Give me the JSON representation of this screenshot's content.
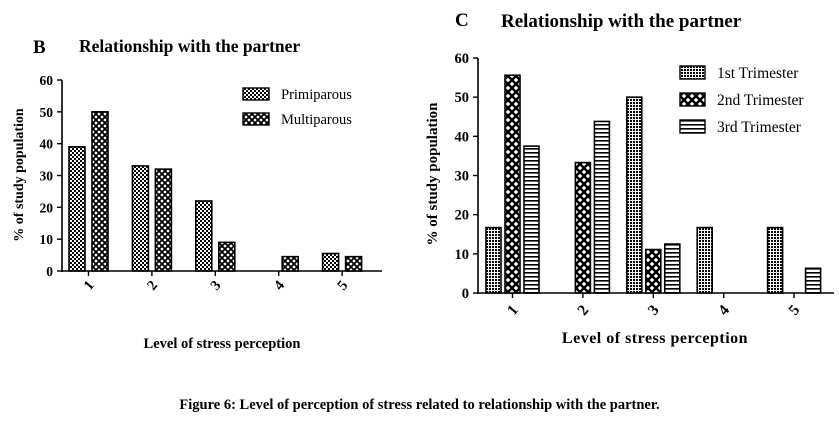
{
  "caption": "Figure 6: Level of perception of stress related to relationship with the partner.",
  "chart_data": [
    {
      "panel_label": "B",
      "type": "bar",
      "title": "Relationship with the partner",
      "xlabel": "Level of stress perception",
      "ylabel": "% of study population",
      "categories": [
        "1",
        "2",
        "3",
        "4",
        "5"
      ],
      "ylim": [
        0,
        60
      ],
      "yticks": [
        0,
        10,
        20,
        30,
        40,
        50,
        60
      ],
      "grid": false,
      "legend_position": "top-right",
      "series": [
        {
          "name": "Primiparous",
          "values": [
            39,
            33,
            22,
            0,
            5.5
          ]
        },
        {
          "name": "Multiparous",
          "values": [
            50,
            32,
            9,
            4.5,
            4.5
          ]
        }
      ]
    },
    {
      "panel_label": "C",
      "type": "bar",
      "title": "Relationship with the partner",
      "xlabel": "Level of stress perception",
      "ylabel": "% of study population",
      "categories": [
        "1",
        "2",
        "3",
        "4",
        "5"
      ],
      "ylim": [
        0,
        60
      ],
      "yticks": [
        0,
        10,
        20,
        30,
        40,
        50,
        60
      ],
      "grid": false,
      "legend_position": "top-right",
      "series": [
        {
          "name": "1st Trimester",
          "values": [
            16.7,
            0,
            50,
            16.7,
            16.7
          ]
        },
        {
          "name": "2nd Trimester",
          "values": [
            55.6,
            33.3,
            11.1,
            0,
            0
          ]
        },
        {
          "name": "3rd Trimester",
          "values": [
            37.5,
            43.8,
            12.5,
            0,
            6.3
          ]
        }
      ]
    }
  ]
}
